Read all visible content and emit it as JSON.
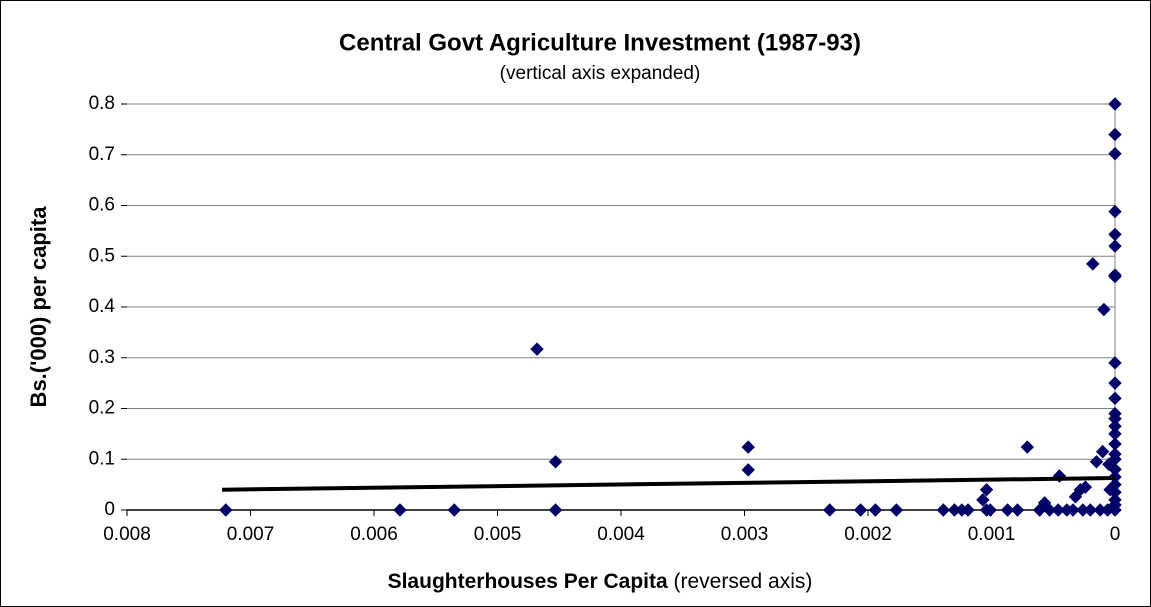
{
  "chart_data": {
    "type": "scatter",
    "title": "Central Govt Agriculture Investment (1987-93)",
    "subtitle": "(vertical axis expanded)",
    "ylabel": "Bs.('000) per capita",
    "xlabel": "Slaughterhouses Per Capita",
    "xlabel_note": "(reversed axis)",
    "xlim": [
      0,
      0.008
    ],
    "x_reversed": true,
    "ylim": [
      0,
      0.8
    ],
    "xticks": [
      0.008,
      0.007,
      0.006,
      0.005,
      0.004,
      0.003,
      0.002,
      0.001,
      0
    ],
    "yticks": [
      0,
      0.1,
      0.2,
      0.3,
      0.4,
      0.5,
      0.6,
      0.7,
      0.8
    ],
    "grid": true,
    "color": "#000066",
    "x": [
      0.0072,
      0.00579,
      0.00535,
      0.00468,
      0.00453,
      0.00453,
      0.00297,
      0.00297,
      0.00231,
      0.00206,
      0.00194,
      0.00177,
      0.00139,
      0.0013,
      0.00124,
      0.00119,
      0.00104,
      0.00107,
      0.00104,
      0.00101,
      0.00087,
      0.00079,
      0.00071,
      0.00061,
      0.00057,
      0.00053,
      0.00046,
      0.00045,
      0.00039,
      0.00034,
      0.00032,
      0.00028,
      0.00024,
      0.00026,
      0.0002,
      0.00018,
      0.00015,
      0.00012,
      0.0001,
      9e-05,
      6e-05,
      4e-05,
      5e-05,
      0,
      0,
      0,
      0,
      0,
      0,
      0,
      0,
      0,
      0,
      0,
      0,
      0,
      0,
      0,
      0,
      0,
      0,
      0,
      0,
      0,
      0,
      0,
      0,
      0
    ],
    "values": [
      0,
      0,
      0,
      0.317,
      0.095,
      0,
      0.124,
      0.079,
      0,
      0,
      0,
      0,
      0,
      0,
      0,
      0,
      0,
      0.02,
      0.04,
      0,
      0,
      0,
      0.124,
      0,
      0.014,
      0,
      0,
      0.067,
      0,
      0,
      0.026,
      0.04,
      0.045,
      0,
      0,
      0.485,
      0.095,
      0,
      0.115,
      0.395,
      0,
      0.04,
      0.09,
      0.8,
      0.74,
      0.702,
      0.588,
      0.543,
      0.52,
      0.463,
      0.46,
      0.29,
      0.25,
      0.22,
      0.19,
      0.18,
      0.165,
      0.15,
      0.13,
      0.11,
      0.1,
      0.08,
      0.065,
      0.05,
      0.035,
      0.02,
      0.01,
      0
    ],
    "trendline": {
      "x": [
        0.00723,
        0
      ],
      "y": [
        0.04,
        0.063
      ]
    }
  }
}
